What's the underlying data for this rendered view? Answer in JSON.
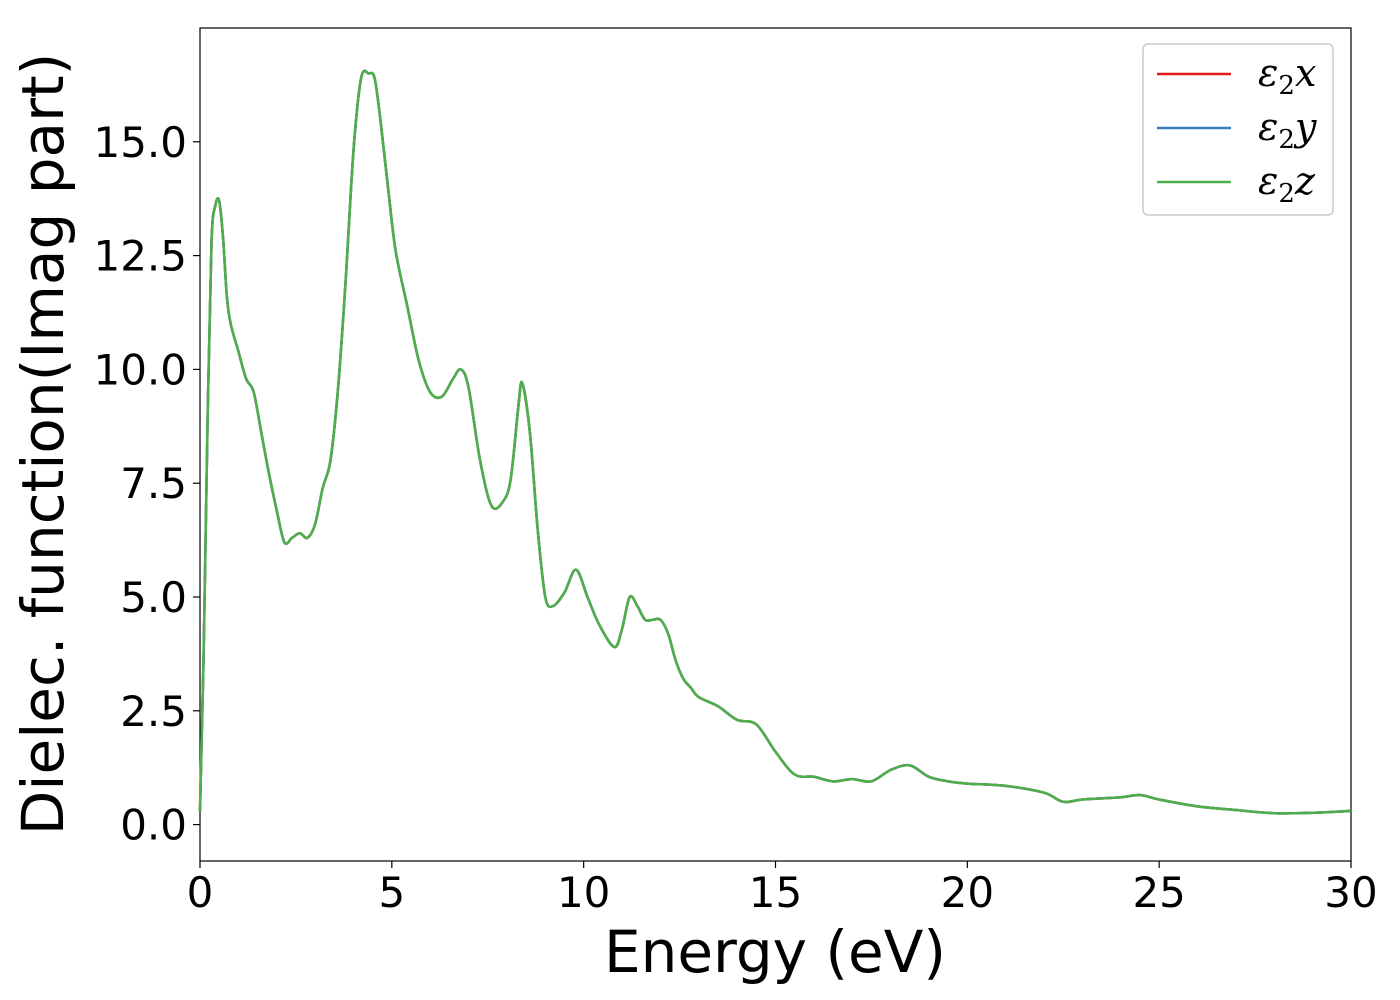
{
  "chart_data": {
    "type": "line",
    "title": "",
    "xlabel": "Energy (eV)",
    "ylabel": "Dielec. function(Imag part)",
    "xlim": [
      0,
      30
    ],
    "ylim": [
      -0.8,
      17.5
    ],
    "xticks": [
      0,
      5,
      10,
      15,
      20,
      25,
      30
    ],
    "xtick_labels": [
      "0",
      "5",
      "10",
      "15",
      "20",
      "25",
      "30"
    ],
    "yticks": [
      0,
      2.5,
      5,
      7.5,
      10,
      12.5,
      15
    ],
    "ytick_labels": [
      "0.0",
      "2.5",
      "5.0",
      "7.5",
      "10.0",
      "12.5",
      "15.0"
    ],
    "grid": false,
    "legend": {
      "position": "top-right",
      "entries": [
        {
          "symbol": "ε",
          "sub": "2",
          "comp": "x"
        },
        {
          "symbol": "ε",
          "sub": "2",
          "comp": "y"
        },
        {
          "symbol": "ε",
          "sub": "2",
          "comp": "z"
        }
      ]
    },
    "x": [
      0,
      0.1,
      0.2,
      0.3,
      0.4,
      0.5,
      0.6,
      0.7,
      0.8,
      1.0,
      1.2,
      1.4,
      1.6,
      1.8,
      2.0,
      2.2,
      2.4,
      2.6,
      2.8,
      3.0,
      3.2,
      3.4,
      3.6,
      3.8,
      4.0,
      4.2,
      4.4,
      4.55,
      4.7,
      4.9,
      5.1,
      5.4,
      5.7,
      6.0,
      6.3,
      6.6,
      6.8,
      7.0,
      7.3,
      7.6,
      7.9,
      8.1,
      8.3,
      8.4,
      8.6,
      8.8,
      9.0,
      9.2,
      9.5,
      9.8,
      10.1,
      10.4,
      10.8,
      11.0,
      11.2,
      11.4,
      11.6,
      11.8,
      12.0,
      12.2,
      12.4,
      12.6,
      12.8,
      13.0,
      13.5,
      14.0,
      14.5,
      15.0,
      15.5,
      16.0,
      16.5,
      17.0,
      17.5,
      18.0,
      18.5,
      19.0,
      19.5,
      20.0,
      21.0,
      22.0,
      22.5,
      23.0,
      24.0,
      24.5,
      25.0,
      26.0,
      27.0,
      28.0,
      29.0,
      30.0
    ],
    "series": [
      {
        "name": "ε2x",
        "color": "#e41a1c",
        "values": [
          0.3,
          4.0,
          9.0,
          12.8,
          13.6,
          13.7,
          12.9,
          11.6,
          11.0,
          10.4,
          9.8,
          9.5,
          8.6,
          7.7,
          6.9,
          6.2,
          6.3,
          6.4,
          6.3,
          6.6,
          7.4,
          8.0,
          9.6,
          12.0,
          14.8,
          16.4,
          16.5,
          16.4,
          15.5,
          14.0,
          12.6,
          11.4,
          10.2,
          9.5,
          9.4,
          9.8,
          10.0,
          9.6,
          8.0,
          7.0,
          7.1,
          7.6,
          9.2,
          9.7,
          8.6,
          6.5,
          5.0,
          4.8,
          5.1,
          5.6,
          5.0,
          4.4,
          3.9,
          4.3,
          5.0,
          4.8,
          4.5,
          4.5,
          4.5,
          4.2,
          3.6,
          3.2,
          3.0,
          2.8,
          2.6,
          2.3,
          2.2,
          1.6,
          1.1,
          1.05,
          0.95,
          1.0,
          0.95,
          1.2,
          1.3,
          1.05,
          0.95,
          0.9,
          0.85,
          0.7,
          0.5,
          0.55,
          0.6,
          0.65,
          0.55,
          0.4,
          0.32,
          0.25,
          0.26,
          0.3
        ]
      },
      {
        "name": "ε2y",
        "color": "#377eb8",
        "values": [
          0.3,
          4.0,
          9.0,
          12.8,
          13.6,
          13.7,
          12.9,
          11.6,
          11.0,
          10.4,
          9.8,
          9.5,
          8.6,
          7.7,
          6.9,
          6.2,
          6.3,
          6.4,
          6.3,
          6.6,
          7.4,
          8.0,
          9.6,
          12.0,
          14.8,
          16.4,
          16.5,
          16.4,
          15.5,
          14.0,
          12.6,
          11.4,
          10.2,
          9.5,
          9.4,
          9.8,
          10.0,
          9.6,
          8.0,
          7.0,
          7.1,
          7.6,
          9.2,
          9.7,
          8.6,
          6.5,
          5.0,
          4.8,
          5.1,
          5.6,
          5.0,
          4.4,
          3.9,
          4.3,
          5.0,
          4.8,
          4.5,
          4.5,
          4.5,
          4.2,
          3.6,
          3.2,
          3.0,
          2.8,
          2.6,
          2.3,
          2.2,
          1.6,
          1.1,
          1.05,
          0.95,
          1.0,
          0.95,
          1.2,
          1.3,
          1.05,
          0.95,
          0.9,
          0.85,
          0.7,
          0.5,
          0.55,
          0.6,
          0.65,
          0.55,
          0.4,
          0.32,
          0.25,
          0.26,
          0.3
        ]
      },
      {
        "name": "ε2z",
        "color": "#4daf4a",
        "values": [
          0.3,
          4.0,
          9.0,
          12.8,
          13.6,
          13.7,
          12.9,
          11.6,
          11.0,
          10.4,
          9.8,
          9.5,
          8.6,
          7.7,
          6.9,
          6.2,
          6.3,
          6.4,
          6.3,
          6.6,
          7.4,
          8.0,
          9.6,
          12.0,
          14.8,
          16.4,
          16.5,
          16.4,
          15.5,
          14.0,
          12.6,
          11.4,
          10.2,
          9.5,
          9.4,
          9.8,
          10.0,
          9.6,
          8.0,
          7.0,
          7.1,
          7.6,
          9.2,
          9.7,
          8.6,
          6.5,
          5.0,
          4.8,
          5.1,
          5.6,
          5.0,
          4.4,
          3.9,
          4.3,
          5.0,
          4.8,
          4.5,
          4.5,
          4.5,
          4.2,
          3.6,
          3.2,
          3.0,
          2.8,
          2.6,
          2.3,
          2.2,
          1.6,
          1.1,
          1.05,
          0.95,
          1.0,
          0.95,
          1.2,
          1.3,
          1.05,
          0.95,
          0.9,
          0.85,
          0.7,
          0.5,
          0.55,
          0.6,
          0.65,
          0.55,
          0.4,
          0.32,
          0.25,
          0.26,
          0.3
        ]
      }
    ]
  }
}
